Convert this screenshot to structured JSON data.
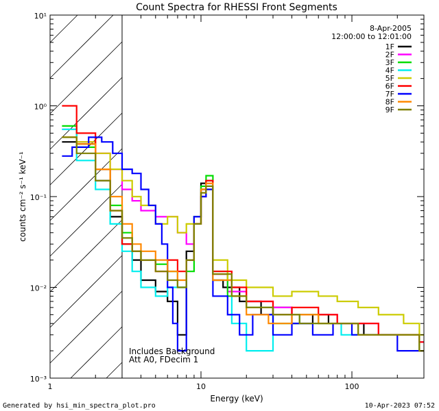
{
  "chart_data": {
    "type": "line",
    "title": "Count Spectra for RHESSI Front Segments",
    "xlabel": "Energy (keV)",
    "ylabel": "counts cm⁻² s⁻¹ keV⁻¹",
    "xscale": "log",
    "yscale": "log",
    "xlim": [
      1,
      300
    ],
    "ylim": [
      0.001,
      10
    ],
    "x_ticks": [
      "1",
      "10",
      "100"
    ],
    "y_ticks": [
      "10⁻³",
      "10⁻²",
      "10⁻¹",
      "10⁰",
      "10¹"
    ],
    "date": "8-Apr-2005",
    "time_range": "12:00:00 to 12:01:00",
    "hatched_region_keV": [
      1,
      3
    ],
    "annotation_lines": [
      "Includes Background",
      "Att A0, FDecim 1"
    ],
    "legend_position": "top-right",
    "series": [
      {
        "name": "1F",
        "color": "#000000",
        "points": [
          [
            1.2,
            0.4
          ],
          [
            1.5,
            0.38
          ],
          [
            2,
            0.15
          ],
          [
            2.5,
            0.06
          ],
          [
            3,
            0.03
          ],
          [
            3.5,
            0.02
          ],
          [
            4,
            0.012
          ],
          [
            5,
            0.009
          ],
          [
            6,
            0.007
          ],
          [
            7,
            0.003
          ],
          [
            8,
            0.025
          ],
          [
            9,
            0.06
          ],
          [
            10,
            0.14
          ],
          [
            10.8,
            0.15
          ],
          [
            12,
            0.012
          ],
          [
            14,
            0.01
          ],
          [
            18,
            0.007
          ],
          [
            25,
            0.005
          ],
          [
            30,
            0.006
          ],
          [
            40,
            0.004
          ],
          [
            55,
            0.005
          ],
          [
            70,
            0.004
          ],
          [
            90,
            0.004
          ],
          [
            120,
            0.003
          ],
          [
            160,
            0.003
          ],
          [
            220,
            0.003
          ],
          [
            280,
            0.002
          ]
        ]
      },
      {
        "name": "2F",
        "color": "#ff00ff",
        "points": [
          [
            1.2,
            0.55
          ],
          [
            1.5,
            0.4
          ],
          [
            2,
            0.3
          ],
          [
            2.5,
            0.2
          ],
          [
            3,
            0.12
          ],
          [
            3.5,
            0.09
          ],
          [
            4,
            0.07
          ],
          [
            5,
            0.06
          ],
          [
            6,
            0.06
          ],
          [
            7,
            0.04
          ],
          [
            8,
            0.03
          ],
          [
            9,
            0.05
          ],
          [
            10,
            0.1
          ],
          [
            10.8,
            0.14
          ],
          [
            12,
            0.014
          ],
          [
            15,
            0.009
          ],
          [
            20,
            0.007
          ],
          [
            30,
            0.006
          ],
          [
            40,
            0.005
          ],
          [
            60,
            0.005
          ],
          [
            80,
            0.004
          ],
          [
            110,
            0.004
          ],
          [
            150,
            0.003
          ],
          [
            200,
            0.003
          ],
          [
            280,
            0.0025
          ]
        ]
      },
      {
        "name": "3F",
        "color": "#00dd00",
        "points": [
          [
            1.2,
            0.6
          ],
          [
            1.5,
            0.35
          ],
          [
            2,
            0.2
          ],
          [
            2.5,
            0.08
          ],
          [
            3,
            0.04
          ],
          [
            3.5,
            0.025
          ],
          [
            4,
            0.02
          ],
          [
            5,
            0.018
          ],
          [
            6,
            0.015
          ],
          [
            7,
            0.01
          ],
          [
            8,
            0.015
          ],
          [
            9,
            0.05
          ],
          [
            10,
            0.13
          ],
          [
            10.8,
            0.17
          ],
          [
            12,
            0.015
          ],
          [
            15,
            0.008
          ],
          [
            20,
            0.006
          ],
          [
            30,
            0.004
          ],
          [
            45,
            0.005
          ],
          [
            60,
            0.004
          ],
          [
            80,
            0.004
          ],
          [
            110,
            0.003
          ],
          [
            150,
            0.003
          ],
          [
            220,
            0.003
          ],
          [
            280,
            0.002
          ]
        ]
      },
      {
        "name": "4F",
        "color": "#00eeee",
        "points": [
          [
            1.2,
            0.55
          ],
          [
            1.5,
            0.25
          ],
          [
            2,
            0.12
          ],
          [
            2.5,
            0.05
          ],
          [
            3,
            0.025
          ],
          [
            3.5,
            0.015
          ],
          [
            4,
            0.01
          ],
          [
            5,
            0.008
          ],
          [
            6,
            0.01
          ],
          [
            7,
            0.01
          ],
          [
            8,
            0.02
          ],
          [
            9,
            0.06
          ],
          [
            10,
            0.12
          ],
          [
            10.8,
            0.13
          ],
          [
            12,
            0.012
          ],
          [
            16,
            0.004
          ],
          [
            20,
            0.002
          ],
          [
            30,
            0.005
          ],
          [
            45,
            0.004
          ],
          [
            60,
            0.004
          ],
          [
            85,
            0.003
          ],
          [
            110,
            0.003
          ],
          [
            150,
            0.003
          ],
          [
            220,
            0.003
          ],
          [
            280,
            0.002
          ]
        ]
      },
      {
        "name": "5F",
        "color": "#cccc00",
        "points": [
          [
            1.2,
            0.45
          ],
          [
            1.5,
            0.4
          ],
          [
            2,
            0.3
          ],
          [
            2.5,
            0.2
          ],
          [
            3,
            0.15
          ],
          [
            3.5,
            0.1
          ],
          [
            4,
            0.08
          ],
          [
            5,
            0.05
          ],
          [
            6,
            0.06
          ],
          [
            7,
            0.04
          ],
          [
            8,
            0.05
          ],
          [
            9,
            0.06
          ],
          [
            10,
            0.1
          ],
          [
            10.8,
            0.12
          ],
          [
            12,
            0.02
          ],
          [
            15,
            0.012
          ],
          [
            20,
            0.01
          ],
          [
            30,
            0.008
          ],
          [
            40,
            0.009
          ],
          [
            60,
            0.008
          ],
          [
            80,
            0.007
          ],
          [
            110,
            0.006
          ],
          [
            150,
            0.005
          ],
          [
            220,
            0.004
          ],
          [
            280,
            0.003
          ]
        ]
      },
      {
        "name": "6F",
        "color": "#ff0000",
        "points": [
          [
            1.2,
            1.0
          ],
          [
            1.5,
            0.5
          ],
          [
            2,
            0.2
          ],
          [
            2.5,
            0.07
          ],
          [
            3,
            0.03
          ],
          [
            3.5,
            0.025
          ],
          [
            4,
            0.02
          ],
          [
            5,
            0.015
          ],
          [
            6,
            0.02
          ],
          [
            7,
            0.015
          ],
          [
            8,
            0.02
          ],
          [
            9,
            0.05
          ],
          [
            10,
            0.12
          ],
          [
            10.8,
            0.15
          ],
          [
            12,
            0.015
          ],
          [
            16,
            0.01
          ],
          [
            20,
            0.007
          ],
          [
            30,
            0.005
          ],
          [
            40,
            0.006
          ],
          [
            60,
            0.005
          ],
          [
            80,
            0.004
          ],
          [
            110,
            0.004
          ],
          [
            150,
            0.003
          ],
          [
            220,
            0.003
          ],
          [
            280,
            0.0025
          ]
        ]
      },
      {
        "name": "7F",
        "color": "#0000ff",
        "points": [
          [
            1.2,
            0.28
          ],
          [
            1.4,
            0.35
          ],
          [
            1.8,
            0.45
          ],
          [
            2.2,
            0.4
          ],
          [
            2.6,
            0.3
          ],
          [
            3,
            0.2
          ],
          [
            3.5,
            0.18
          ],
          [
            4,
            0.12
          ],
          [
            4.5,
            0.08
          ],
          [
            5,
            0.05
          ],
          [
            5.5,
            0.03
          ],
          [
            6,
            0.01
          ],
          [
            6.5,
            0.004
          ],
          [
            7,
            0.002
          ],
          [
            8,
            0.02
          ],
          [
            9,
            0.06
          ],
          [
            10,
            0.1
          ],
          [
            10.8,
            0.12
          ],
          [
            12,
            0.008
          ],
          [
            15,
            0.005
          ],
          [
            18,
            0.003
          ],
          [
            22,
            0.005
          ],
          [
            30,
            0.003
          ],
          [
            40,
            0.004
          ],
          [
            55,
            0.003
          ],
          [
            75,
            0.004
          ],
          [
            100,
            0.003
          ],
          [
            140,
            0.003
          ],
          [
            200,
            0.002
          ],
          [
            280,
            0.002
          ]
        ]
      },
      {
        "name": "8F",
        "color": "#ff8800",
        "points": [
          [
            1.2,
            0.45
          ],
          [
            1.5,
            0.38
          ],
          [
            2,
            0.2
          ],
          [
            2.5,
            0.1
          ],
          [
            3,
            0.05
          ],
          [
            3.5,
            0.03
          ],
          [
            4,
            0.025
          ],
          [
            5,
            0.02
          ],
          [
            6,
            0.015
          ],
          [
            7,
            0.012
          ],
          [
            8,
            0.02
          ],
          [
            9,
            0.05
          ],
          [
            10,
            0.12
          ],
          [
            10.8,
            0.14
          ],
          [
            12,
            0.012
          ],
          [
            16,
            0.008
          ],
          [
            20,
            0.005
          ],
          [
            28,
            0.004
          ],
          [
            40,
            0.005
          ],
          [
            60,
            0.004
          ],
          [
            80,
            0.004
          ],
          [
            110,
            0.003
          ],
          [
            150,
            0.003
          ],
          [
            220,
            0.003
          ],
          [
            280,
            0.002
          ]
        ]
      },
      {
        "name": "9F",
        "color": "#808000",
        "points": [
          [
            1.2,
            0.45
          ],
          [
            1.5,
            0.3
          ],
          [
            2,
            0.15
          ],
          [
            2.5,
            0.07
          ],
          [
            3,
            0.035
          ],
          [
            3.5,
            0.025
          ],
          [
            4,
            0.02
          ],
          [
            5,
            0.015
          ],
          [
            6,
            0.012
          ],
          [
            7,
            0.01
          ],
          [
            8,
            0.02
          ],
          [
            9,
            0.05
          ],
          [
            10,
            0.11
          ],
          [
            10.8,
            0.13
          ],
          [
            12,
            0.014
          ],
          [
            16,
            0.008
          ],
          [
            20,
            0.006
          ],
          [
            30,
            0.005
          ],
          [
            45,
            0.004
          ],
          [
            60,
            0.004
          ],
          [
            85,
            0.004
          ],
          [
            110,
            0.003
          ],
          [
            150,
            0.003
          ],
          [
            220,
            0.003
          ],
          [
            280,
            0.002
          ]
        ]
      }
    ]
  },
  "footer": {
    "generated_by": "Generated by hsi_min_spectra_plot.pro",
    "timestamp": "10-Apr-2023 07:52"
  }
}
